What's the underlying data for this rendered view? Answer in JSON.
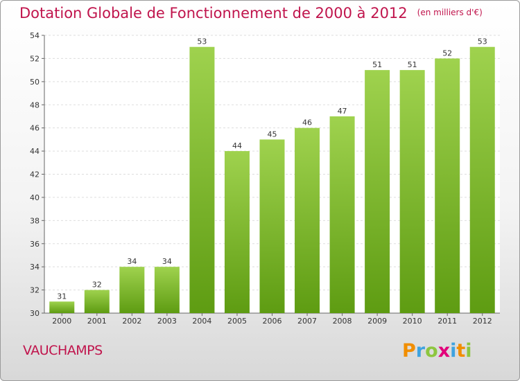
{
  "header": {
    "title": "Dotation Globale de Fonctionnement de 2000 à 2012",
    "subtitle": "(en milliers d'€)"
  },
  "commune": "VAUCHAMPS",
  "brand": {
    "text": "Proxiti",
    "letters": [
      {
        "char": "P",
        "color": "#f18e00"
      },
      {
        "char": "r",
        "color": "#3fa3e0"
      },
      {
        "char": "o",
        "color": "#8dc63f"
      },
      {
        "char": "x",
        "color": "#e2007a"
      },
      {
        "char": "i",
        "color": "#3fa3e0"
      },
      {
        "char": "t",
        "color": "#f18e00"
      },
      {
        "char": "i",
        "color": "#8dc63f"
      }
    ]
  },
  "chart_data": {
    "type": "bar",
    "title": "Dotation Globale de Fonctionnement de 2000 à 2012",
    "subtitle": "(en milliers d'€)",
    "categories": [
      "2000",
      "2001",
      "2002",
      "2003",
      "2004",
      "2005",
      "2006",
      "2007",
      "2008",
      "2009",
      "2010",
      "2011",
      "2012"
    ],
    "values": [
      31,
      32,
      34,
      34,
      53,
      44,
      45,
      46,
      47,
      51,
      51,
      52,
      53
    ],
    "ylim": [
      30,
      54
    ],
    "yticks": [
      30,
      32,
      34,
      36,
      38,
      40,
      42,
      44,
      46,
      48,
      50,
      52,
      54
    ],
    "grid": true,
    "bar_color_top": "#9fd24e",
    "bar_color_bottom": "#5e9c12",
    "xlabel": "",
    "ylabel": ""
  }
}
